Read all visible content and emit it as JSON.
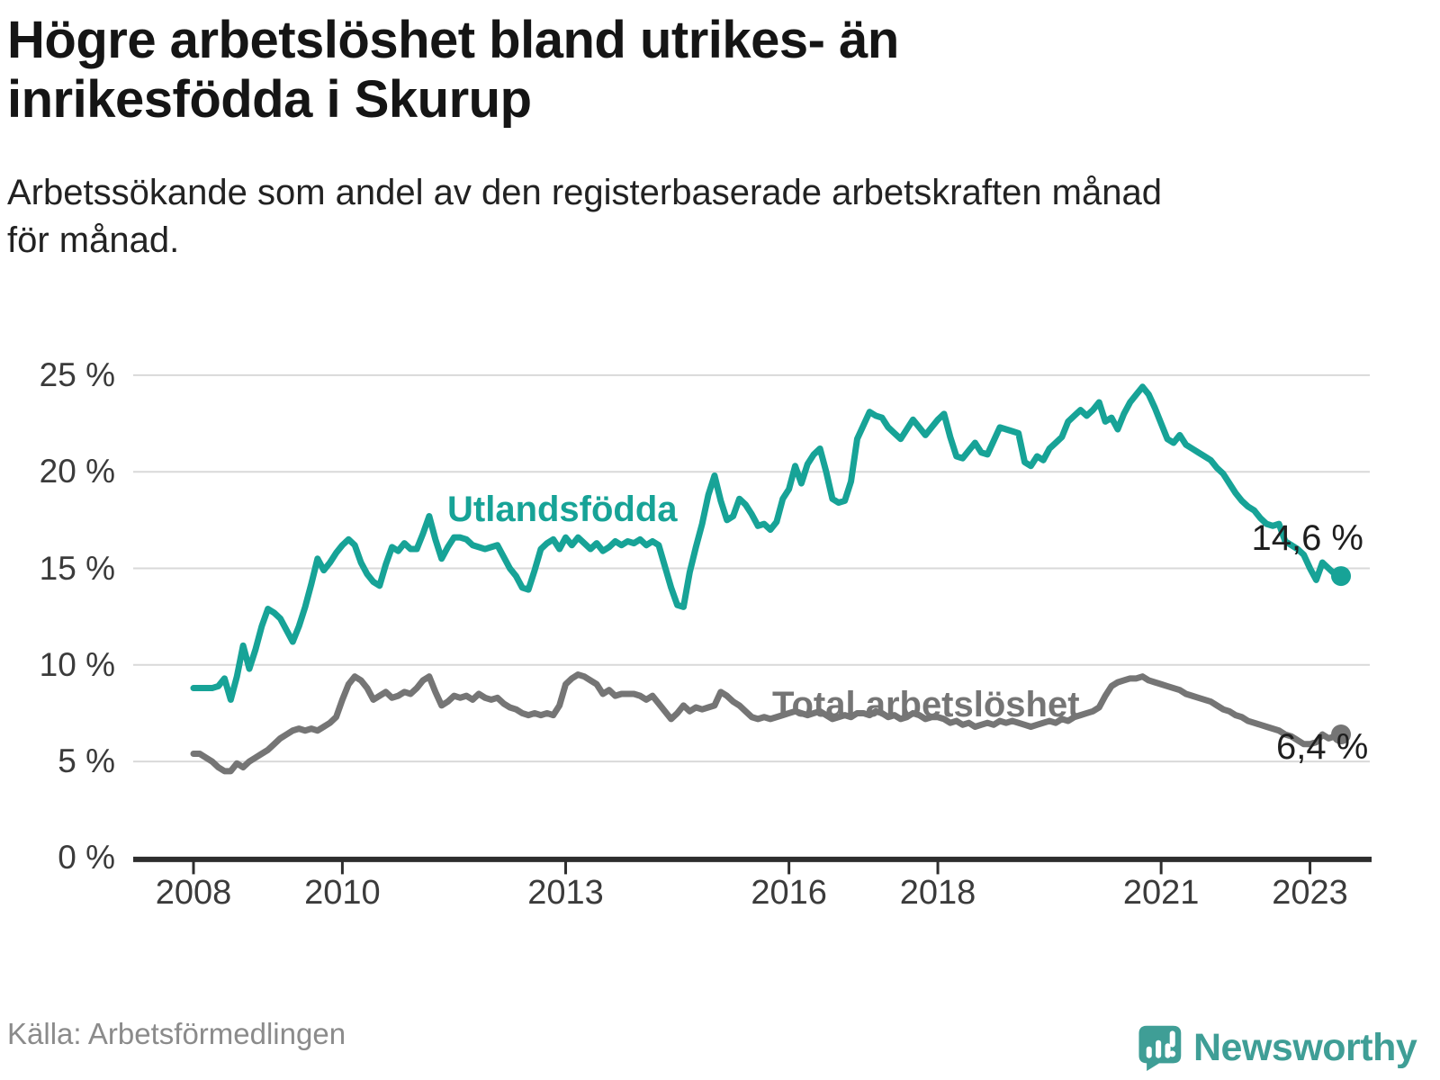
{
  "header": {
    "title": "Högre arbetslöshet bland utrikes- än\ninrikesfödda i Skurup",
    "subtitle": "Arbetssökande som andel av den registerbaserade arbetskraften månad\nför månad."
  },
  "footer": {
    "source": "Källa: Arbetsförmedlingen",
    "brand": "Newsworthy"
  },
  "colors": {
    "teal": "#17a397",
    "gray": "#757575",
    "brand_teal": "#3f9e96",
    "grid": "#d9d9d9",
    "axis": "#2e2e2e",
    "text_dark": "#1f1f1f",
    "tick_text": "#3b3b3b",
    "source_text": "#8b8b8b"
  },
  "chart_data": {
    "type": "line",
    "title": "Högre arbetslöshet bland utrikes- än inrikesfödda i Skurup",
    "xlabel": "",
    "ylabel": "Arbetssökande som andel av den registerbaserade arbetskraften",
    "x_start_month": "2008-01",
    "x_end_month": "2023-06",
    "x_tick_years": [
      2008,
      2010,
      2013,
      2016,
      2018,
      2021,
      2023
    ],
    "y_tick_labels": [
      "0 %",
      "5 %",
      "10 %",
      "15 %",
      "20 %",
      "25 %"
    ],
    "y_tick_values": [
      0,
      5,
      10,
      15,
      20,
      25
    ],
    "ylim": [
      0,
      26.5
    ],
    "grid": "horizontal",
    "legend_position": "direct-labels-on-lines",
    "series": [
      {
        "name": "Utlandsfödda",
        "color": "#17a397",
        "end_label": "14,6 %",
        "end_value": 14.6,
        "values": [
          8.8,
          8.8,
          8.8,
          8.8,
          8.9,
          9.3,
          8.2,
          9.4,
          11.0,
          9.8,
          10.8,
          12.0,
          12.9,
          12.7,
          12.4,
          11.8,
          11.2,
          12.0,
          13.0,
          14.2,
          15.5,
          14.9,
          15.3,
          15.8,
          16.2,
          16.5,
          16.2,
          15.3,
          14.7,
          14.3,
          14.1,
          15.2,
          16.1,
          15.9,
          16.3,
          16.0,
          16.0,
          16.8,
          17.7,
          16.5,
          15.5,
          16.1,
          16.6,
          16.6,
          16.5,
          16.2,
          16.1,
          16.0,
          16.1,
          16.2,
          15.6,
          15.0,
          14.6,
          14.0,
          13.9,
          14.9,
          16.0,
          16.3,
          16.5,
          16.0,
          16.6,
          16.2,
          16.6,
          16.3,
          16.0,
          16.3,
          15.9,
          16.1,
          16.4,
          16.2,
          16.4,
          16.3,
          16.5,
          16.2,
          16.4,
          16.2,
          15.1,
          14.0,
          13.1,
          13.0,
          14.8,
          16.1,
          17.3,
          18.8,
          19.8,
          18.5,
          17.5,
          17.7,
          18.6,
          18.3,
          17.8,
          17.2,
          17.3,
          17.0,
          17.4,
          18.6,
          19.1,
          20.3,
          19.4,
          20.4,
          20.9,
          21.2,
          20.0,
          18.6,
          18.4,
          18.5,
          19.5,
          21.7,
          22.4,
          23.1,
          22.9,
          22.8,
          22.3,
          22.0,
          21.7,
          22.2,
          22.7,
          22.3,
          21.9,
          22.3,
          22.7,
          23.0,
          21.8,
          20.8,
          20.7,
          21.1,
          21.5,
          21.0,
          20.9,
          21.6,
          22.3,
          22.2,
          22.1,
          22.0,
          20.5,
          20.3,
          20.8,
          20.6,
          21.2,
          21.5,
          21.8,
          22.6,
          22.9,
          23.2,
          22.9,
          23.2,
          23.6,
          22.6,
          22.8,
          22.2,
          23.0,
          23.6,
          24.0,
          24.4,
          24.0,
          23.3,
          22.5,
          21.7,
          21.5,
          21.9,
          21.4,
          21.2,
          21.0,
          20.8,
          20.6,
          20.2,
          19.9,
          19.4,
          18.9,
          18.5,
          18.2,
          18.0,
          17.6,
          17.3,
          17.2,
          17.3,
          16.4,
          16.2,
          16.0,
          15.7,
          15.0,
          14.4,
          15.3,
          15.0,
          14.7,
          14.6
        ]
      },
      {
        "name": "Total arbetslöshet",
        "color": "#757575",
        "end_label": "6,4 %",
        "end_value": 6.4,
        "values": [
          5.4,
          5.4,
          5.2,
          5.0,
          4.7,
          4.5,
          4.5,
          4.9,
          4.7,
          5.0,
          5.2,
          5.4,
          5.6,
          5.9,
          6.2,
          6.4,
          6.6,
          6.7,
          6.6,
          6.7,
          6.6,
          6.8,
          7.0,
          7.3,
          8.2,
          9.0,
          9.4,
          9.2,
          8.8,
          8.2,
          8.4,
          8.6,
          8.3,
          8.4,
          8.6,
          8.5,
          8.8,
          9.2,
          9.4,
          8.6,
          7.9,
          8.1,
          8.4,
          8.3,
          8.4,
          8.2,
          8.5,
          8.3,
          8.2,
          8.3,
          8.0,
          7.8,
          7.7,
          7.5,
          7.4,
          7.5,
          7.4,
          7.5,
          7.4,
          7.9,
          9.0,
          9.3,
          9.5,
          9.4,
          9.2,
          9.0,
          8.5,
          8.7,
          8.4,
          8.5,
          8.5,
          8.5,
          8.4,
          8.2,
          8.4,
          8.0,
          7.6,
          7.2,
          7.5,
          7.9,
          7.6,
          7.8,
          7.7,
          7.8,
          7.9,
          8.6,
          8.4,
          8.1,
          7.9,
          7.6,
          7.3,
          7.2,
          7.3,
          7.2,
          7.3,
          7.4,
          7.5,
          7.6,
          7.5,
          7.4,
          7.5,
          7.6,
          7.4,
          7.2,
          7.3,
          7.4,
          7.3,
          7.5,
          7.5,
          7.4,
          7.6,
          7.5,
          7.3,
          7.4,
          7.2,
          7.3,
          7.5,
          7.4,
          7.2,
          7.3,
          7.3,
          7.2,
          7.0,
          7.1,
          6.9,
          7.0,
          6.8,
          6.9,
          7.0,
          6.9,
          7.1,
          7.0,
          7.1,
          7.0,
          6.9,
          6.8,
          6.9,
          7.0,
          7.1,
          7.0,
          7.2,
          7.1,
          7.3,
          7.4,
          7.5,
          7.6,
          7.8,
          8.4,
          8.9,
          9.1,
          9.2,
          9.3,
          9.3,
          9.4,
          9.2,
          9.1,
          9.0,
          8.9,
          8.8,
          8.7,
          8.5,
          8.4,
          8.3,
          8.2,
          8.1,
          7.9,
          7.7,
          7.6,
          7.4,
          7.3,
          7.1,
          7.0,
          6.9,
          6.8,
          6.7,
          6.6,
          6.4,
          6.3,
          6.1,
          5.9,
          5.9,
          6.0,
          6.4,
          6.2,
          6.3,
          6.4
        ]
      }
    ]
  }
}
